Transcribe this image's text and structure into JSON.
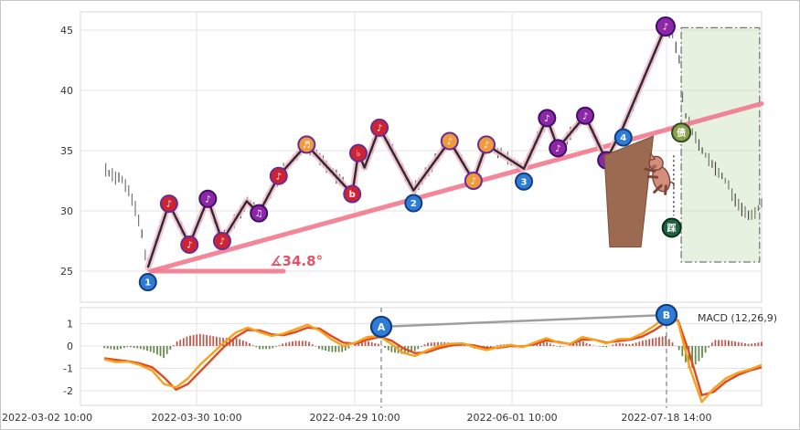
{
  "style": {
    "outer_border": "#c6c6c6",
    "panel_border": "#d8d8d8",
    "grid": "#e3e3e3",
    "tick_text": "#333333",
    "bar_dark": "#2f2f2f",
    "bar_light": "#606060",
    "marker_styles": {
      "blue": {
        "fill": "#2e7cd6",
        "stroke": "#123c82"
      },
      "red": {
        "fill": "#cf2333",
        "stroke": "#6a2c91"
      },
      "purple": {
        "fill": "#8d27a8",
        "stroke": "#400f66"
      },
      "orange": {
        "fill": "#f09a3e",
        "stroke": "#6a2c91"
      },
      "green": {
        "fill": "#8aa04c",
        "stroke": "#2c4a1e"
      },
      "dkgreen": {
        "fill": "#1f6440",
        "stroke": "#0a2e1b"
      }
    }
  },
  "chart_data": [
    {
      "type": "candlestick",
      "title": "",
      "ylabel": "",
      "y_ticks": [
        25,
        30,
        35,
        40,
        45
      ],
      "ylim": [
        22.6,
        46.4
      ],
      "x_tick_labels": [
        {
          "text": "2022-03-02 10:00",
          "f": 0.0,
          "anchor": "start"
        },
        {
          "text": "2022-03-30 10:00",
          "f": 0.1705,
          "anchor": "middle"
        },
        {
          "text": "2022-04-29 10:00",
          "f": 0.4027,
          "anchor": "middle"
        },
        {
          "text": "2022-06-01 10:00",
          "f": 0.6336,
          "anchor": "middle"
        },
        {
          "text": "2022-07-18 14:00",
          "f": 0.8604,
          "anchor": "middle"
        }
      ],
      "price_path": [
        [
          0.037,
          33.4
        ],
        [
          0.049,
          32.9
        ],
        [
          0.061,
          32.5
        ],
        [
          0.072,
          31.4
        ],
        [
          0.082,
          30.0
        ],
        [
          0.091,
          27.8
        ],
        [
          0.099,
          25.3
        ],
        [
          0.13,
          30.6
        ],
        [
          0.16,
          27.2
        ],
        [
          0.187,
          31.0
        ],
        [
          0.208,
          27.5
        ],
        [
          0.244,
          30.8
        ],
        [
          0.262,
          29.8
        ],
        [
          0.291,
          32.9
        ],
        [
          0.332,
          35.5
        ],
        [
          0.399,
          31.4
        ],
        [
          0.408,
          34.8
        ],
        [
          0.417,
          33.6
        ],
        [
          0.439,
          36.9
        ],
        [
          0.489,
          31.7
        ],
        [
          0.542,
          35.8
        ],
        [
          0.577,
          32.5
        ],
        [
          0.596,
          35.5
        ],
        [
          0.651,
          33.5
        ],
        [
          0.685,
          37.7
        ],
        [
          0.701,
          35.2
        ],
        [
          0.741,
          37.9
        ],
        [
          0.772,
          34.2
        ],
        [
          0.797,
          37.0
        ],
        [
          0.859,
          45.3
        ],
        [
          0.868,
          44.7
        ],
        [
          0.878,
          43.0
        ],
        [
          0.886,
          38.3
        ],
        [
          0.9,
          36.3
        ],
        [
          0.915,
          34.9
        ],
        [
          0.93,
          33.7
        ],
        [
          0.945,
          32.6
        ],
        [
          0.958,
          31.3
        ],
        [
          0.97,
          30.2
        ],
        [
          0.981,
          29.4
        ],
        [
          0.991,
          30.0
        ],
        [
          1.0,
          30.5
        ]
      ],
      "zigzag_pivots": [
        [
          0.099,
          25.3
        ],
        [
          0.13,
          30.6
        ],
        [
          0.16,
          27.2
        ],
        [
          0.187,
          31.0
        ],
        [
          0.208,
          27.5
        ],
        [
          0.244,
          30.8
        ],
        [
          0.262,
          29.8
        ],
        [
          0.291,
          32.9
        ],
        [
          0.332,
          35.5
        ],
        [
          0.399,
          31.4
        ],
        [
          0.408,
          34.8
        ],
        [
          0.417,
          33.6
        ],
        [
          0.439,
          36.9
        ],
        [
          0.489,
          31.7
        ],
        [
          0.542,
          35.8
        ],
        [
          0.577,
          32.5
        ],
        [
          0.596,
          35.5
        ],
        [
          0.651,
          33.5
        ],
        [
          0.685,
          37.7
        ],
        [
          0.701,
          35.2
        ],
        [
          0.741,
          37.9
        ],
        [
          0.772,
          34.2
        ],
        [
          0.797,
          37.0
        ],
        [
          0.859,
          45.3
        ]
      ],
      "zigzag_style": {
        "line": "#2b2b36",
        "halo": "#f6bac6"
      },
      "pivot_markers": [
        {
          "id": "1",
          "f": 0.099,
          "v": 25.3,
          "style": "blue",
          "symbol": "1",
          "dy": 16,
          "r": 9
        },
        {
          "id": "n1",
          "f": 0.13,
          "v": 30.6,
          "style": "red",
          "symbol": "♪",
          "dy": 0,
          "r": 9
        },
        {
          "id": "n2",
          "f": 0.16,
          "v": 27.2,
          "style": "red",
          "symbol": "♪",
          "dy": 0,
          "r": 9
        },
        {
          "id": "n3",
          "f": 0.187,
          "v": 31.0,
          "style": "purple",
          "symbol": "♪",
          "dy": 0,
          "r": 9
        },
        {
          "id": "n4",
          "f": 0.208,
          "v": 27.5,
          "style": "red",
          "symbol": "♪",
          "dy": 0,
          "r": 9
        },
        {
          "id": "n5",
          "f": 0.262,
          "v": 29.8,
          "style": "purple",
          "symbol": "♫",
          "dy": 0,
          "r": 9
        },
        {
          "id": "n6",
          "f": 0.291,
          "v": 32.9,
          "style": "red",
          "symbol": "♪",
          "dy": 0,
          "r": 9
        },
        {
          "id": "n7",
          "f": 0.332,
          "v": 35.5,
          "style": "orange",
          "symbol": "♬",
          "dy": 0,
          "r": 9
        },
        {
          "id": "n8",
          "f": 0.399,
          "v": 31.4,
          "style": "red",
          "symbol": "b",
          "dy": 0,
          "r": 9
        },
        {
          "id": "n9",
          "f": 0.408,
          "v": 34.8,
          "style": "red",
          "symbol": "♭",
          "dy": 0,
          "r": 9
        },
        {
          "id": "n10",
          "f": 0.439,
          "v": 36.9,
          "style": "red",
          "symbol": "♪",
          "dy": 0,
          "r": 9
        },
        {
          "id": "2",
          "f": 0.489,
          "v": 31.7,
          "style": "blue",
          "symbol": "2",
          "dy": 14,
          "r": 9
        },
        {
          "id": "n11",
          "f": 0.542,
          "v": 35.8,
          "style": "orange",
          "symbol": "♪",
          "dy": 0,
          "r": 9
        },
        {
          "id": "n12",
          "f": 0.577,
          "v": 32.5,
          "style": "orange",
          "symbol": "♪",
          "dy": 0,
          "r": 9
        },
        {
          "id": "n13",
          "f": 0.596,
          "v": 35.5,
          "style": "orange",
          "symbol": "♪",
          "dy": 0,
          "r": 9
        },
        {
          "id": "3",
          "f": 0.651,
          "v": 33.5,
          "style": "blue",
          "symbol": "3",
          "dy": 14,
          "r": 9
        },
        {
          "id": "n14",
          "f": 0.685,
          "v": 37.7,
          "style": "purple",
          "symbol": "♪",
          "dy": 0,
          "r": 9
        },
        {
          "id": "n15",
          "f": 0.701,
          "v": 35.2,
          "style": "purple",
          "symbol": "♪",
          "dy": 0,
          "r": 9
        },
        {
          "id": "n16",
          "f": 0.741,
          "v": 37.9,
          "style": "purple",
          "symbol": "♪",
          "dy": 0,
          "r": 9
        },
        {
          "id": "n17",
          "f": 0.772,
          "v": 34.2,
          "style": "purple",
          "symbol": "♪",
          "dy": 0,
          "r": 9
        },
        {
          "id": "4",
          "f": 0.797,
          "v": 37.0,
          "style": "blue",
          "symbol": "4",
          "dy": 12,
          "r": 9
        },
        {
          "id": "top",
          "f": 0.859,
          "v": 45.3,
          "style": "purple",
          "symbol": "♪",
          "dy": 0,
          "r": 10
        }
      ],
      "special_markers": [
        {
          "id": "debt",
          "f": 0.882,
          "v": 36.5,
          "style": "green",
          "symbol": "债",
          "r": 10
        },
        {
          "id": "step",
          "f": 0.868,
          "v": 28.6,
          "style": "dkgreen",
          "symbol": "踩",
          "r": 10
        }
      ],
      "trend_line": {
        "color": "#f2798f",
        "width": 5,
        "p1": {
          "f": 0.103,
          "v": 25.0
        },
        "p2": {
          "f": 1.0,
          "v": 38.9
        }
      },
      "angle_baseline": {
        "f1": 0.107,
        "f2": 0.298,
        "v": 25.0
      },
      "angle_label": {
        "text": "∡34.8°",
        "f": 0.278,
        "v": 25.45,
        "color": "#e25568"
      },
      "forecast_region": {
        "f1": 0.882,
        "f2": 0.997,
        "v1": 25.76,
        "v2": 45.2,
        "fill": "#cfe3bf",
        "fill_opacity": 0.5,
        "stroke": "#777777"
      },
      "cliff": {
        "points": [
          [
            0.769,
            34.6
          ],
          [
            0.841,
            36.2
          ],
          [
            0.823,
            27.0
          ],
          [
            0.777,
            27.0
          ]
        ],
        "fill": "#9c6a50",
        "stroke": "#7c4f39"
      },
      "pig": {
        "f": 0.852,
        "v": 32.8,
        "body": "#d28f7c",
        "dark": "#7e4536"
      },
      "dotted_connector": {
        "f": 0.871,
        "v1": 34.6,
        "v2": 29.6
      }
    },
    {
      "type": "line",
      "title": "MACD (12,26,9)",
      "y_ticks": [
        1,
        0,
        -1,
        -2
      ],
      "ylim": [
        -2.65,
        1.71
      ],
      "x_start": 0.035,
      "x_step": 0.0175455,
      "macd_color": "#f6a21c",
      "signal_color": "#e04a22",
      "hist_pos_color": "#b4483a",
      "hist_neg_color": "#55803c",
      "histogram_scale": 1.8,
      "macd_values": [
        -0.6,
        -0.72,
        -0.7,
        -0.85,
        -1.1,
        -1.7,
        -1.85,
        -1.45,
        -0.85,
        -0.35,
        0.15,
        0.6,
        0.82,
        0.62,
        0.45,
        0.55,
        0.75,
        0.95,
        0.7,
        0.3,
        0.0,
        0.15,
        0.4,
        0.45,
        0.1,
        -0.3,
        -0.45,
        -0.2,
        0.0,
        0.1,
        0.12,
        -0.05,
        -0.18,
        -0.05,
        0.05,
        -0.05,
        0.15,
        0.35,
        0.15,
        0.1,
        0.4,
        0.28,
        0.12,
        0.3,
        0.32,
        0.55,
        0.9,
        1.3,
        1.1,
        -1.0,
        -2.5,
        -1.9,
        -1.45,
        -1.2,
        -1.05,
        -0.85
      ],
      "signal_values": [
        -0.55,
        -0.62,
        -0.68,
        -0.78,
        -0.95,
        -1.4,
        -1.95,
        -1.7,
        -1.15,
        -0.6,
        -0.05,
        0.4,
        0.72,
        0.7,
        0.52,
        0.48,
        0.62,
        0.82,
        0.78,
        0.45,
        0.15,
        0.1,
        0.28,
        0.4,
        0.25,
        -0.1,
        -0.32,
        -0.28,
        -0.1,
        0.02,
        0.08,
        0.02,
        -0.1,
        -0.08,
        0.0,
        -0.02,
        0.08,
        0.25,
        0.18,
        0.08,
        0.28,
        0.28,
        0.15,
        0.22,
        0.28,
        0.42,
        0.7,
        1.05,
        1.15,
        -0.4,
        -2.2,
        -2.05,
        -1.6,
        -1.3,
        -1.1,
        -0.95
      ],
      "ab_markers": [
        {
          "label": "A",
          "f": 0.4416,
          "v": 0.86
        },
        {
          "label": "B",
          "f": 0.8604,
          "v": 1.39
        }
      ],
      "ab_line_color": "#9e9e9e",
      "vline_color": "#8a8a8a"
    }
  ]
}
